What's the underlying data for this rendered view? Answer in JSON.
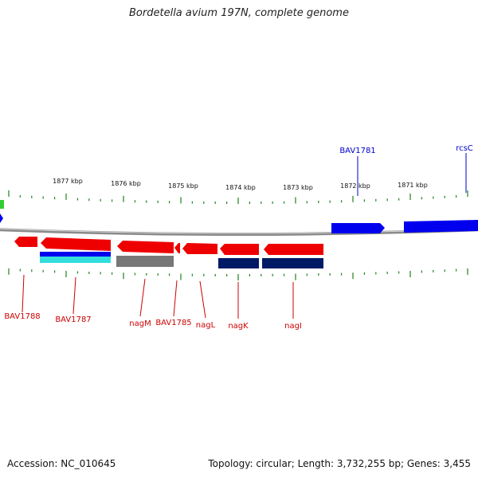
{
  "title": "Bordetella avium 197N, complete genome",
  "footer": {
    "accession": "Accession: NC_010645",
    "summary": "Topology: circular; Length: 3,732,255 bp; Genes: 3,455"
  },
  "colors": {
    "backbone": "#8a8a8a",
    "ticks": "#2e8b2e",
    "forward_genes": "#0000ee",
    "reverse_genes": "#ee0000",
    "forward_labels": "#0000cc",
    "reverse_labels": "#cc0000",
    "cog_dark": "#001a66",
    "cog_gray": "#777777",
    "cog_cyan": "#33dddd",
    "leftover_green": "#33cc33"
  },
  "scale_ticks": [
    {
      "label": "1877 kbp"
    },
    {
      "label": "1876 kbp"
    },
    {
      "label": "1875 kbp"
    },
    {
      "label": "1874 kbp"
    },
    {
      "label": "1873 kbp"
    },
    {
      "label": "1872 kbp"
    },
    {
      "label": "1871 kbp"
    }
  ],
  "forward_genes": [
    {
      "name": "BAV1781"
    },
    {
      "name": "rcsC"
    }
  ],
  "reverse_genes": [
    {
      "name": "BAV1788"
    },
    {
      "name": "BAV1787"
    },
    {
      "name": "nagM"
    },
    {
      "name": "BAV1785"
    },
    {
      "name": "nagL"
    },
    {
      "name": "nagK"
    },
    {
      "name": "nagI"
    }
  ]
}
